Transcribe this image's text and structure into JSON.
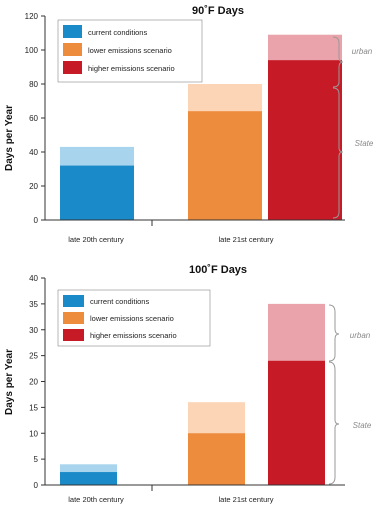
{
  "chart_data": [
    {
      "type": "bar",
      "title": "90˚F Days",
      "ylabel": "Days per Year",
      "ylim": [
        0,
        120
      ],
      "yticks": [
        "0",
        "20",
        "40",
        "60",
        "80",
        "100",
        "120"
      ],
      "categories": [
        "late 20th century",
        "late 21st century"
      ],
      "series": [
        {
          "name": "current conditions",
          "color": "#1a8ac8",
          "light_color": "#a8d4ee",
          "category": "late 20th century",
          "state": 32,
          "urban": 43
        },
        {
          "name": "lower emissions scenario",
          "color": "#ee8c3e",
          "light_color": "#fbd5b5",
          "category": "late 21st century",
          "state": 64,
          "urban": 80
        },
        {
          "name": "higher emissions scenario",
          "color": "#c71a27",
          "light_color": "#eaa3aa",
          "category": "late 21st century",
          "state": 94,
          "urban": 109
        }
      ],
      "brace_labels": {
        "urban": "urban",
        "state": "State"
      },
      "legend": "top-left"
    },
    {
      "type": "bar",
      "title": "100˚F Days",
      "ylabel": "Days per Year",
      "ylim": [
        0,
        40
      ],
      "yticks": [
        "0",
        "5",
        "10",
        "15",
        "20",
        "25",
        "30",
        "35",
        "40"
      ],
      "categories": [
        "late 20th century",
        "late 21st century"
      ],
      "series": [
        {
          "name": "current conditions",
          "color": "#1a8ac8",
          "light_color": "#a8d4ee",
          "category": "late 20th century",
          "state": 2.5,
          "urban": 4
        },
        {
          "name": "lower emissions scenario",
          "color": "#ee8c3e",
          "light_color": "#fbd5b5",
          "category": "late 21st century",
          "state": 10,
          "urban": 16
        },
        {
          "name": "higher emissions scenario",
          "color": "#c71a27",
          "light_color": "#eaa3aa",
          "category": "late 21st century",
          "state": 24,
          "urban": 35
        }
      ],
      "brace_labels": {
        "urban": "urban",
        "state": "State"
      },
      "legend": "top-left"
    }
  ]
}
